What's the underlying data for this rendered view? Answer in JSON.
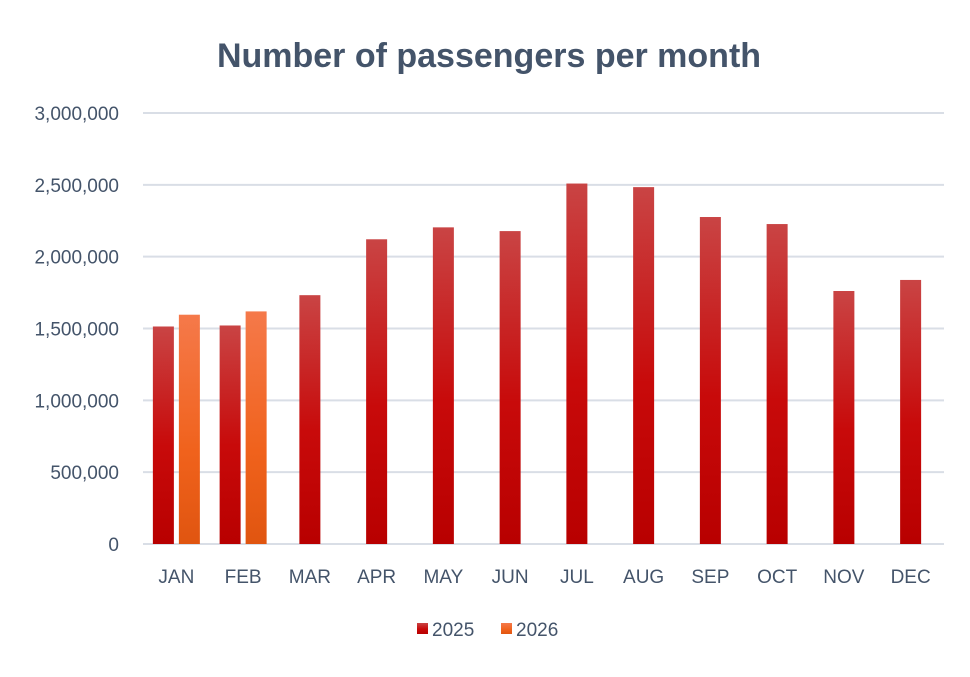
{
  "chart_data": {
    "type": "bar",
    "title": "Number of passengers per month",
    "xlabel": "",
    "ylabel": "",
    "ylim": [
      0,
      3000000
    ],
    "yticks": [
      0,
      500000,
      1000000,
      1500000,
      2000000,
      2500000,
      3000000
    ],
    "ytick_labels": [
      "0",
      "500,000",
      "1,000,000",
      "1,500,000",
      "2,000,000",
      "2,500,000",
      "3,000,000"
    ],
    "grid": true,
    "legend_position": "bottom",
    "categories": [
      "JAN",
      "FEB",
      "MAR",
      "APR",
      "MAY",
      "JUN",
      "JUL",
      "AUG",
      "SEP",
      "OCT",
      "NOV",
      "DEC"
    ],
    "series": [
      {
        "name": "2025",
        "color": "#C00000",
        "values": [
          1514000,
          1521000,
          1732000,
          2121000,
          2204000,
          2178000,
          2509000,
          2484000,
          2276000,
          2227000,
          1761000,
          1838000
        ]
      },
      {
        "name": "2026",
        "color": "#F26522",
        "values": [
          1596000,
          1619000,
          null,
          null,
          null,
          null,
          null,
          null,
          null,
          null,
          null,
          null
        ]
      }
    ]
  }
}
